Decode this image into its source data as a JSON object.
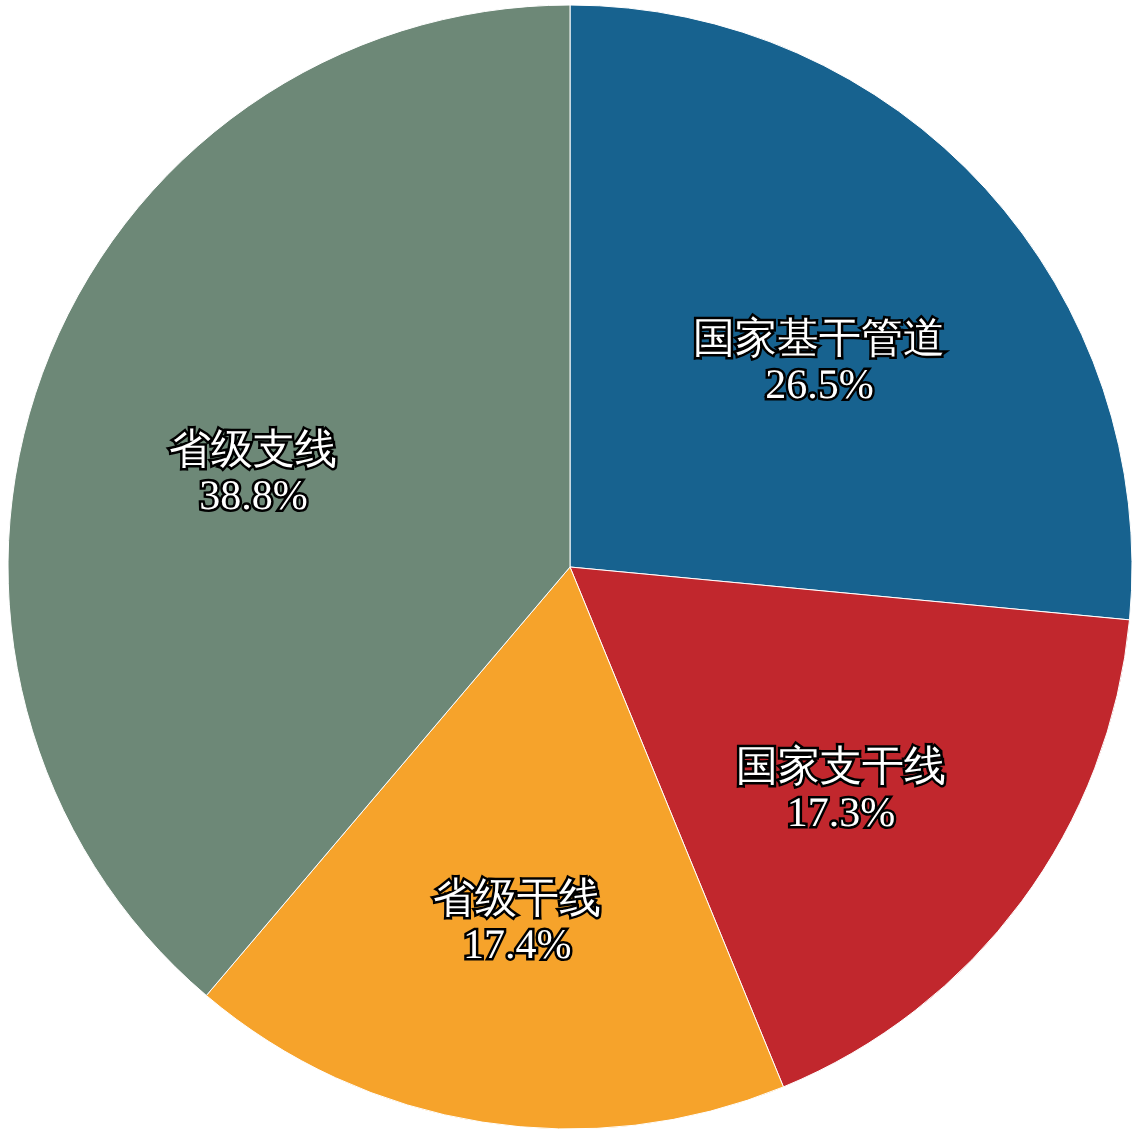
{
  "chart_data": {
    "type": "pie",
    "categories": [
      "国家基干管道",
      "国家支干线",
      "省级干线",
      "省级支线"
    ],
    "values": [
      26.5,
      17.3,
      17.4,
      38.8
    ],
    "value_labels": [
      "26.5%",
      "17.3%",
      "17.4%",
      "38.8%"
    ],
    "colors": [
      "#17628f",
      "#c1272d",
      "#f6a32b",
      "#6d8877"
    ],
    "legend": false
  }
}
